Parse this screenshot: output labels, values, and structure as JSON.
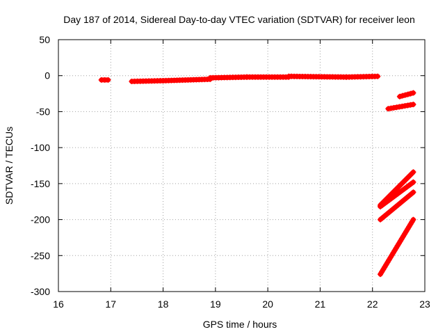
{
  "chart_data": {
    "type": "scatter",
    "title": "Day 187 of 2014, Sidereal Day-to-day VTEC variation (SDTVAR) for receiver leon",
    "xlabel": "GPS time / hours",
    "ylabel": "SDTVAR / TECUs",
    "xlim": [
      16,
      23
    ],
    "ylim": [
      -300,
      50
    ],
    "xticks": [
      16,
      17,
      18,
      19,
      20,
      21,
      22,
      23
    ],
    "yticks": [
      -300,
      -250,
      -200,
      -150,
      -100,
      -50,
      0,
      50
    ],
    "xtick_labels": [
      "16",
      "17",
      "18",
      "19",
      "20",
      "21",
      "22",
      "23"
    ],
    "ytick_labels": [
      "-300",
      "-250",
      "-200",
      "-150",
      "-100",
      "-50",
      "0",
      "50"
    ],
    "grid": true,
    "marker": "+",
    "series": [
      {
        "color": "#ff0000",
        "segments": [
          {
            "x0": 16.82,
            "y0": -6,
            "x1": 16.95,
            "y1": -6
          },
          {
            "x0": 17.4,
            "y0": -8,
            "x1": 18.0,
            "y1": -7
          },
          {
            "x0": 18.0,
            "y0": -7,
            "x1": 18.9,
            "y1": -5
          },
          {
            "x0": 18.9,
            "y0": -3,
            "x1": 19.6,
            "y1": -2
          },
          {
            "x0": 19.6,
            "y0": -2,
            "x1": 20.4,
            "y1": -2
          },
          {
            "x0": 20.4,
            "y0": -1,
            "x1": 21.5,
            "y1": -2
          },
          {
            "x0": 21.5,
            "y0": -2,
            "x1": 22.1,
            "y1": -1
          },
          {
            "x0": 22.3,
            "y0": -46,
            "x1": 22.78,
            "y1": -40
          },
          {
            "x0": 22.52,
            "y0": -29,
            "x1": 22.78,
            "y1": -24
          },
          {
            "x0": 22.15,
            "y0": -180,
            "x1": 22.78,
            "y1": -134
          },
          {
            "x0": 22.15,
            "y0": -182,
            "x1": 22.78,
            "y1": -148
          },
          {
            "x0": 22.15,
            "y0": -200,
            "x1": 22.78,
            "y1": -162
          },
          {
            "x0": 22.15,
            "y0": -276,
            "x1": 22.78,
            "y1": -200
          }
        ]
      }
    ]
  }
}
